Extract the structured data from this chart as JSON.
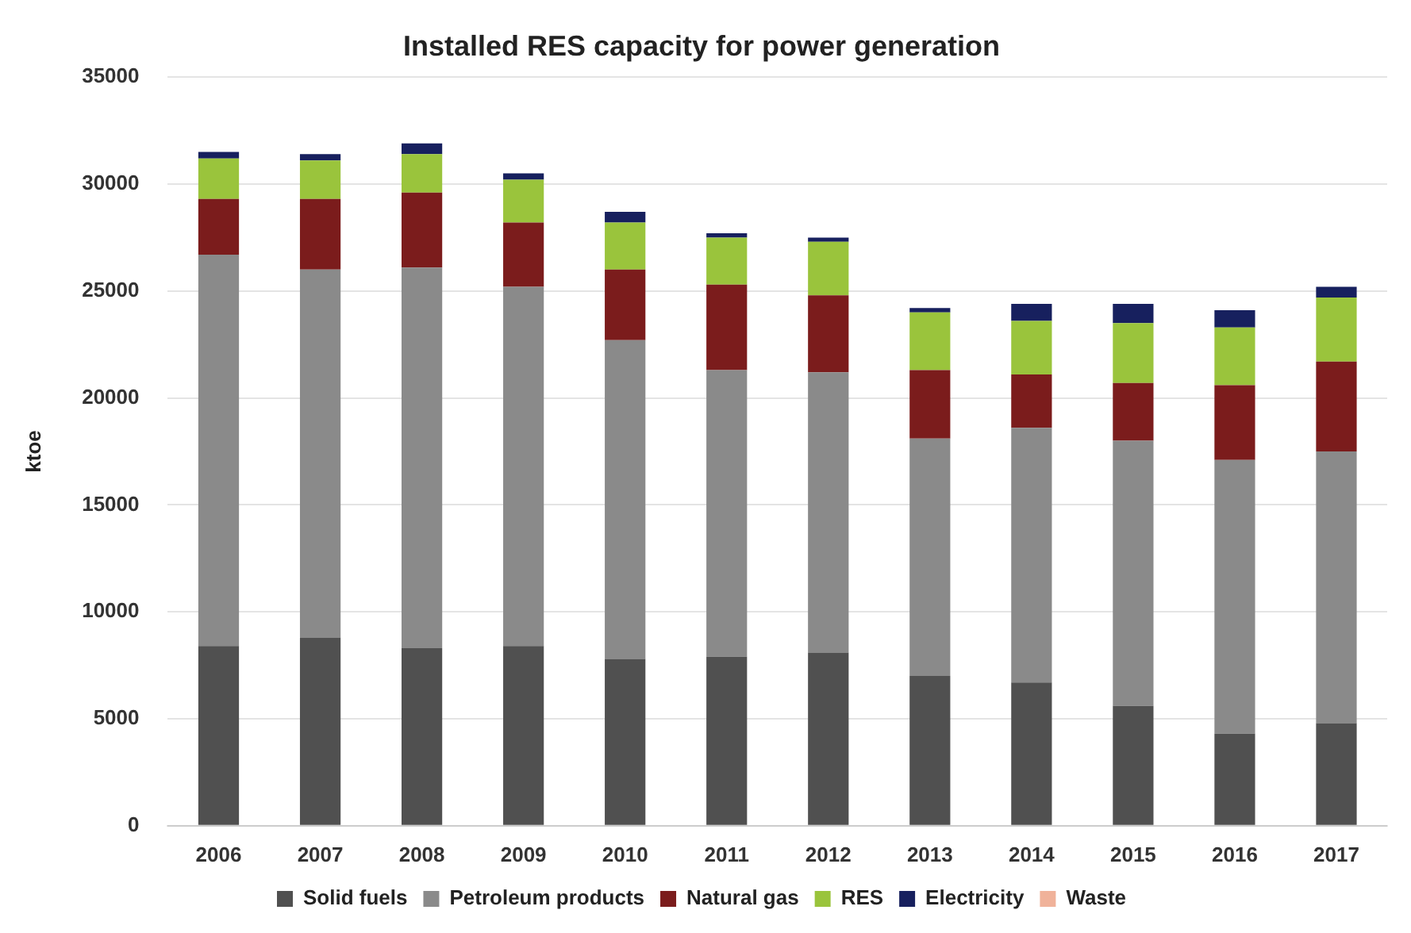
{
  "chart_data": {
    "type": "bar",
    "title": "Installed RES capacity for power generation",
    "ylabel": "ktoe",
    "categories": [
      "2006",
      "2007",
      "2008",
      "2009",
      "2010",
      "2011",
      "2012",
      "2013",
      "2014",
      "2015",
      "2016",
      "2017"
    ],
    "stacked": true,
    "ylim": [
      0,
      35000
    ],
    "yticks": [
      0,
      5000,
      10000,
      15000,
      20000,
      25000,
      30000,
      35000
    ],
    "grid": "y",
    "legend": "bottom",
    "series": [
      {
        "name": "Solid fuels",
        "color": "#505050",
        "values": [
          8400,
          8800,
          8300,
          8400,
          7800,
          7900,
          8100,
          7000,
          6700,
          5600,
          4300,
          4800
        ]
      },
      {
        "name": "Petroleum products",
        "color": "#8a8a8a",
        "values": [
          18300,
          17200,
          17800,
          16800,
          14900,
          13400,
          13100,
          11100,
          11900,
          12400,
          12800,
          12700
        ]
      },
      {
        "name": "Natural gas",
        "color": "#7b1c1c",
        "values": [
          2600,
          3300,
          3500,
          3000,
          3300,
          4000,
          3600,
          3200,
          2500,
          2700,
          3500,
          4200
        ]
      },
      {
        "name": "RES",
        "color": "#9ac43c",
        "values": [
          1900,
          1800,
          1800,
          2000,
          2200,
          2200,
          2500,
          2700,
          2500,
          2800,
          2700,
          3000
        ]
      },
      {
        "name": "Electricity",
        "color": "#17205e",
        "values": [
          300,
          300,
          500,
          300,
          500,
          200,
          200,
          200,
          800,
          900,
          800,
          500
        ]
      },
      {
        "name": "Waste",
        "color": "#f0b29a",
        "values": [
          0,
          0,
          0,
          0,
          0,
          0,
          0,
          0,
          0,
          0,
          0,
          0
        ]
      }
    ]
  }
}
